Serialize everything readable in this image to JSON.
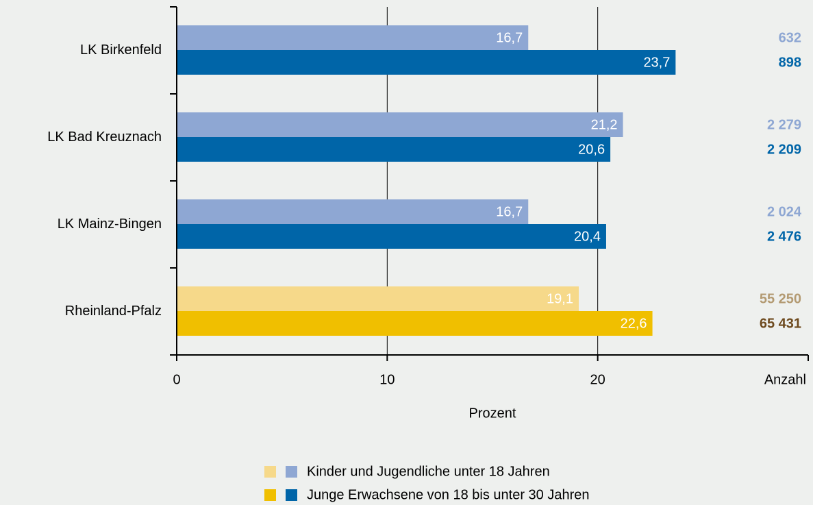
{
  "chart_data": {
    "type": "hbar",
    "categories": [
      "LK Birkenfeld",
      "LK Bad Kreuznach",
      "LK Mainz-Bingen",
      "Rheinland-Pfalz"
    ],
    "series": [
      {
        "name": "Kinder und Jugendliche unter 18 Jahren",
        "colors": [
          "#8ea7d3",
          "#8ea7d3",
          "#8ea7d3",
          "#f6d98a"
        ],
        "values": [
          16.7,
          21.2,
          16.7,
          19.1
        ],
        "value_labels": [
          "16,7",
          "21,2",
          "16,7",
          "19,1"
        ],
        "counts": [
          632,
          2279,
          2024,
          55250
        ],
        "count_labels": [
          "632",
          "2 279",
          "2 024",
          "55 250"
        ],
        "count_colors": [
          "#8ea7d3",
          "#8ea7d3",
          "#8ea7d3",
          "#b39a72"
        ]
      },
      {
        "name": "Junge Erwachsene von 18 bis unter 30 Jahren",
        "colors": [
          "#0065a8",
          "#0065a8",
          "#0065a8",
          "#f0bf00"
        ],
        "values": [
          23.7,
          20.6,
          20.4,
          22.6
        ],
        "value_labels": [
          "23,7",
          "20,6",
          "20,4",
          "22,6"
        ],
        "counts": [
          898,
          2209,
          2476,
          65431
        ],
        "count_labels": [
          "898",
          "2 209",
          "2 476",
          "65 431"
        ],
        "count_colors": [
          "#0065a8",
          "#0065a8",
          "#0065a8",
          "#6e4a1e"
        ]
      }
    ],
    "xlim": [
      0,
      30
    ],
    "xticks": [
      0,
      10,
      20
    ],
    "grid": true,
    "x_label": "Prozent",
    "count_axis_label": "Anzahl"
  }
}
